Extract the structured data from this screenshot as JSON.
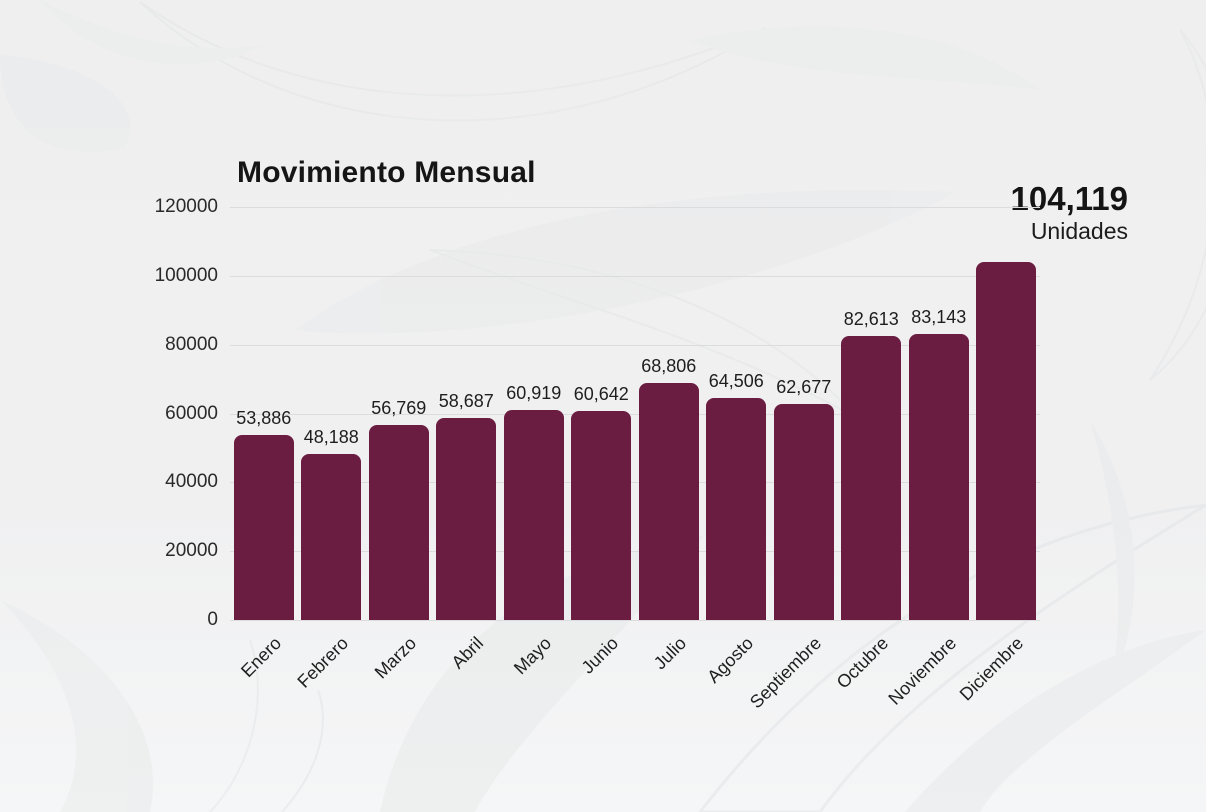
{
  "chart_data": {
    "type": "bar",
    "title": "Movimiento Mensual",
    "categories": [
      "Enero",
      "Febrero",
      "Marzo",
      "Abril",
      "Mayo",
      "Junio",
      "Julio",
      "Agosto",
      "Septiembre",
      "Octubre",
      "Noviembre",
      "Diciembre"
    ],
    "values": [
      53886,
      48188,
      56769,
      58687,
      60919,
      60642,
      68806,
      64506,
      62677,
      82613,
      83143,
      104119
    ],
    "value_labels": [
      "53,886",
      "48,188",
      "56,769",
      "58,687",
      "60,919",
      "60,642",
      "68,806",
      "64,506",
      "62,677",
      "82,613",
      "83,143",
      ""
    ],
    "highlight": {
      "value": "104,119",
      "unit": "Unidades"
    },
    "xlabel": "",
    "ylabel": "",
    "ylim": [
      0,
      120000
    ],
    "ytick_step": 20000,
    "ytick_labels": [
      "0",
      "20000",
      "40000",
      "60000",
      "80000",
      "100000",
      "120000"
    ],
    "grid": true,
    "legend": "none",
    "bar_color": "#6a1c41",
    "gridline_color": "#dcdcde",
    "background_color": "#efeff0",
    "text_color": "#1e1e1e"
  }
}
